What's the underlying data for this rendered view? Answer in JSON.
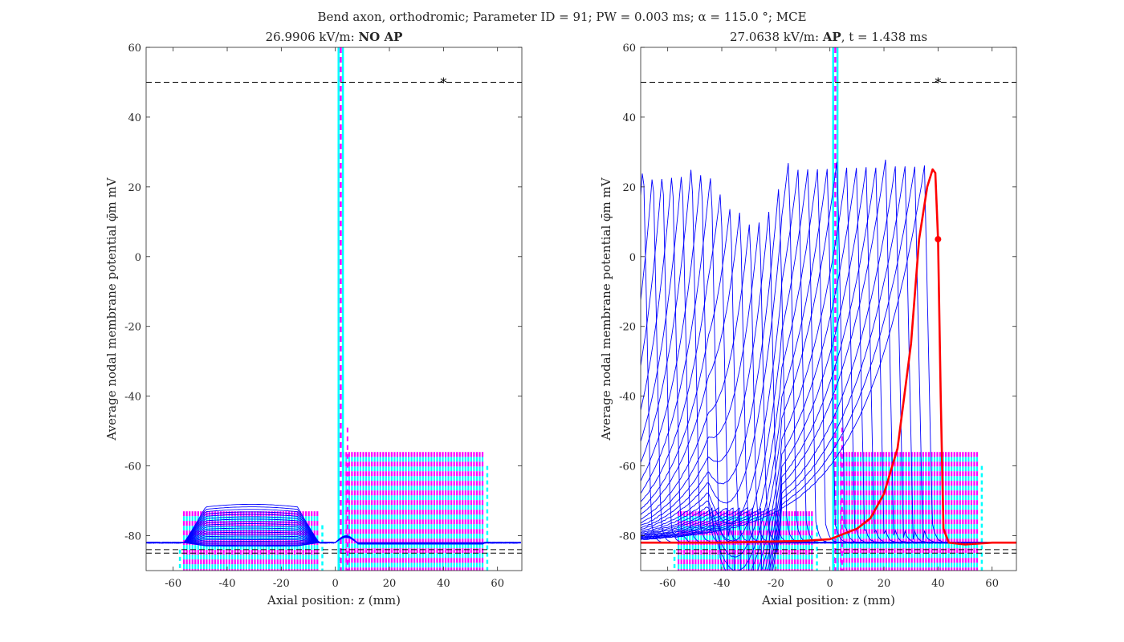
{
  "figure": {
    "suptitle": "Bend axon, orthodromic; Parameter ID = 91; PW = 0.003 ms; α = 115.0 °; MCE"
  },
  "chart_data": [
    {
      "type": "line",
      "title_prefix": "26.9906 kV/m: ",
      "title_bold": "NO AP",
      "title_suffix": "",
      "xlabel": "Axial position: z (mm)",
      "ylabel": "Average nodal membrane potential φ̄m mV",
      "xlim": [
        -70,
        69
      ],
      "ylim": [
        -90,
        60
      ],
      "xticks": [
        -60,
        -40,
        -20,
        0,
        20,
        40,
        60
      ],
      "yticks": [
        -80,
        -60,
        -40,
        -20,
        0,
        20,
        40,
        60
      ],
      "threshold_line": -84,
      "reference_line": 50,
      "star_marker": {
        "x": 40,
        "y": 50
      },
      "bend_position": 2,
      "segments": [
        {
          "x0": -56,
          "x1": -6,
          "top": -73,
          "bottom": -90
        },
        {
          "x0": 3,
          "x1": 55,
          "top": -56,
          "bottom": -90
        }
      ],
      "spike": {
        "x": 2,
        "top": 60
      },
      "traces": {
        "count": 22,
        "peak_min": -83,
        "peak_max": -71
      },
      "highlight": null,
      "colors": {
        "trace": "#0000ff",
        "highlight": "#ff0000",
        "dash_a": "#ff00ff",
        "dash_b": "#00ffff",
        "ref": "#000000"
      }
    },
    {
      "type": "line",
      "title_prefix": "27.0638 kV/m: ",
      "title_bold": "AP",
      "title_suffix": ", t = 1.438 ms",
      "xlabel": "Axial position: z (mm)",
      "ylabel": "Average nodal membrane potential φ̄m mV",
      "xlim": [
        -70,
        69
      ],
      "ylim": [
        -90,
        60
      ],
      "xticks": [
        -60,
        -40,
        -20,
        0,
        20,
        40,
        60
      ],
      "yticks": [
        -80,
        -60,
        -40,
        -20,
        0,
        20,
        40,
        60
      ],
      "threshold_line": -84,
      "reference_line": 50,
      "star_marker": {
        "x": 40,
        "y": 50
      },
      "bend_position": 2,
      "segments": [
        {
          "x0": -56,
          "x1": -6,
          "top": -73,
          "bottom": -90
        },
        {
          "x0": 3,
          "x1": 55,
          "top": -56,
          "bottom": -90
        }
      ],
      "spike": {
        "x": 2,
        "top": 60
      },
      "traces": {
        "count": 30,
        "peak_min": -71,
        "peak_max": 26
      },
      "highlight": {
        "x": [
          -70,
          -40,
          -10,
          0,
          10,
          15,
          20,
          25,
          30,
          33,
          36,
          38,
          39,
          40,
          41,
          42,
          44,
          50,
          60,
          69
        ],
        "y": [
          -82,
          -82,
          -81.5,
          -81,
          -78,
          -75,
          -68,
          -55,
          -25,
          5,
          20,
          25,
          24,
          5,
          -40,
          -78,
          -82,
          -82.5,
          -82,
          -82
        ]
      },
      "highlight_marker": {
        "x": 40,
        "y": 5
      },
      "colors": {
        "trace": "#0000ff",
        "highlight": "#ff0000",
        "dash_a": "#ff00ff",
        "dash_b": "#00ffff",
        "ref": "#000000"
      }
    }
  ]
}
